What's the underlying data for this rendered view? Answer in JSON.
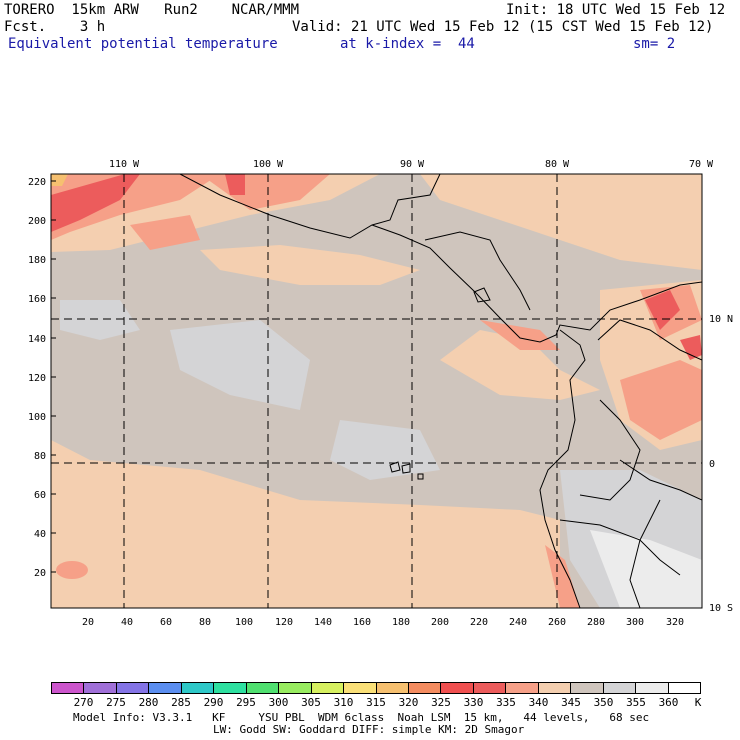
{
  "header": {
    "model": "TORERO  15km ARW   Run2    NCAR/MMM",
    "init": "Init: 18 UTC Wed 15 Feb 12",
    "fcst": "Fcst.    3 h",
    "valid": "Valid: 21 UTC Wed 15 Feb 12 (15 CST Wed 15 Feb 12)",
    "field": "Equivalent potential temperature",
    "level": "at k-index =  44",
    "smooth": "sm= 2"
  },
  "map": {
    "top_lon_labels": [
      "110 W",
      "100 W",
      "90 W",
      "80 W",
      "70 W"
    ],
    "right_lat_labels": [
      "10 N",
      "0",
      "10 S"
    ],
    "y_ticks": [
      "220",
      "200",
      "180",
      "160",
      "140",
      "120",
      "100",
      "80",
      "60",
      "40",
      "20"
    ],
    "x_ticks": [
      "20",
      "40",
      "60",
      "80",
      "100",
      "120",
      "140",
      "160",
      "180",
      "200",
      "220",
      "240",
      "260",
      "280",
      "300",
      "320"
    ]
  },
  "colorbar": {
    "labels": [
      "270",
      "275",
      "280",
      "285",
      "290",
      "295",
      "300",
      "305",
      "310",
      "315",
      "320",
      "325",
      "330",
      "335",
      "340",
      "345",
      "350",
      "355",
      "360"
    ],
    "unit": "K",
    "colors": [
      "#cc55cc",
      "#a070d8",
      "#8474e6",
      "#5b8ef0",
      "#2ec8c8",
      "#2ee0a0",
      "#50e070",
      "#98ec60",
      "#d6f060",
      "#fae078",
      "#f6c070",
      "#f48c60",
      "#f05050",
      "#ec5c5c",
      "#f6a088",
      "#f4cfb0",
      "#cfc5bd",
      "#d4d4d6",
      "#ececec",
      "#ffffff"
    ]
  },
  "footer": {
    "line1": "Model Info: V3.3.1   KF     YSU PBL  WDM 6class  Noah LSM  15 km,   44 levels,   68 sec",
    "line2": "LW: Godd SW: Goddard DIFF: simple KM: 2D Smagor"
  }
}
